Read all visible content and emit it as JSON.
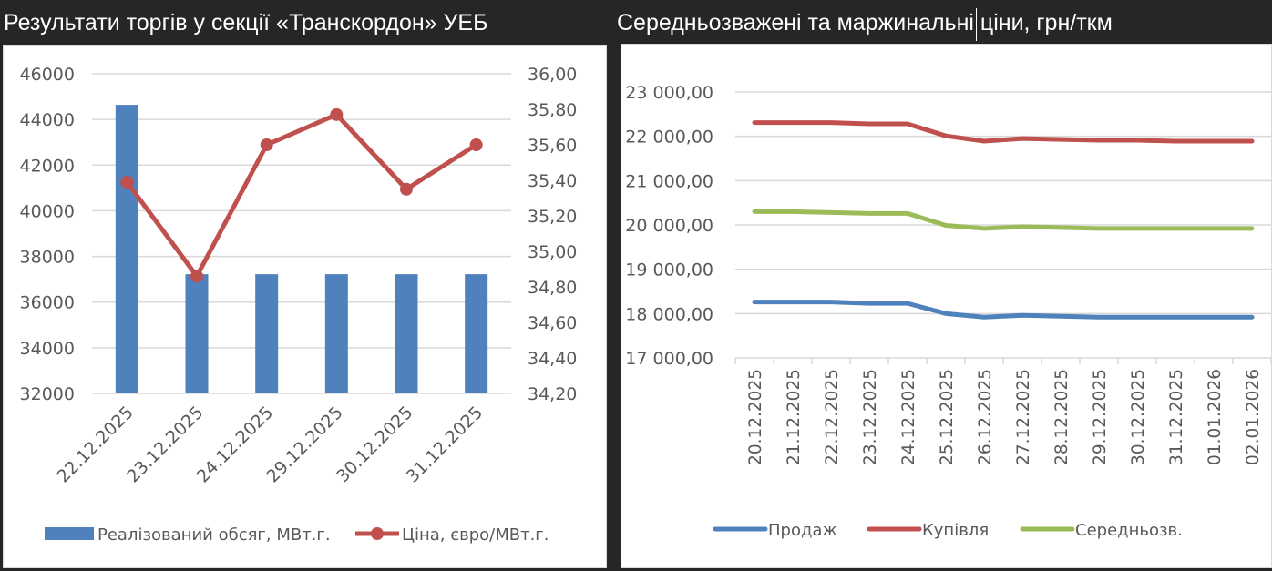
{
  "left_title": "Результати торгів у секції «Транскордон» УЕБ",
  "right_title": "Середньозважені та маржинальні ціни,  грн/ткм",
  "colors": {
    "volume": "#4f81bd",
    "price": "#c0504d",
    "sale": "#4f81bd",
    "buy": "#c0504d",
    "avg": "#9bbb59",
    "grid": "#d9d9d9",
    "axis_text": "#595959"
  },
  "chart_data": [
    {
      "type": "bar+line",
      "title": "Результати торгів у секції «Транскордон» УЕБ",
      "categories": [
        "22.12.2025",
        "23.12.2025",
        "24.12.2025",
        "29.12.2025",
        "30.12.2025",
        "31.12.2025"
      ],
      "series": [
        {
          "name": "Реалізований обсяг, МВт.г.",
          "type": "bar",
          "axis": "left",
          "values": [
            44640,
            37220,
            37220,
            37220,
            37220,
            37220
          ]
        },
        {
          "name": "Ціна, євро/МВт.г.",
          "type": "line",
          "axis": "right",
          "markers": true,
          "values": [
            35.39,
            34.86,
            35.6,
            35.77,
            35.35,
            35.6
          ]
        }
      ],
      "y_left": {
        "ylim": [
          32000,
          46000
        ],
        "ticks": [
          "46000",
          "44000",
          "42000",
          "40000",
          "38000",
          "36000",
          "34000",
          "32000"
        ]
      },
      "y_right": {
        "ylim": [
          34.2,
          36.0
        ],
        "ticks": [
          "36,00",
          "35,80",
          "35,60",
          "35,40",
          "35,20",
          "35,00",
          "34,80",
          "34,60",
          "34,40",
          "34,20"
        ]
      },
      "grid": true,
      "legend_position": "bottom",
      "x_label_rotation": -45
    },
    {
      "type": "line",
      "title": "Середньозважені та маржинальні ціни,  грн/ткм",
      "categories": [
        "20.12.2025",
        "21.12.2025",
        "22.12.2025",
        "23.12.2025",
        "24.12.2025",
        "25.12.2025",
        "26.12.2025",
        "27.12.2025",
        "28.12.2025",
        "29.12.2025",
        "30.12.2025",
        "31.12.2025",
        "01.01.2026",
        "02.01.2026"
      ],
      "series": [
        {
          "name": "Продаж",
          "values": [
            18260,
            18260,
            18260,
            18230,
            18230,
            18000,
            17920,
            17960,
            17940,
            17920,
            17920,
            17920,
            17920,
            17920
          ]
        },
        {
          "name": "Купівля",
          "values": [
            22310,
            22310,
            22310,
            22280,
            22280,
            22010,
            21890,
            21950,
            21930,
            21910,
            21910,
            21890,
            21890,
            21890
          ]
        },
        {
          "name": "Середньозв.",
          "values": [
            20300,
            20300,
            20280,
            20260,
            20260,
            19990,
            19920,
            19960,
            19940,
            19920,
            19920,
            19920,
            19920,
            19920
          ]
        }
      ],
      "ylim": [
        17000,
        23000
      ],
      "y_ticks": [
        "23 000,00",
        "22 000,00",
        "21 000,00",
        "20 000,00",
        "19 000,00",
        "18 000,00",
        "17 000,00"
      ],
      "grid": true,
      "legend_position": "bottom",
      "x_label_rotation": -90
    }
  ]
}
